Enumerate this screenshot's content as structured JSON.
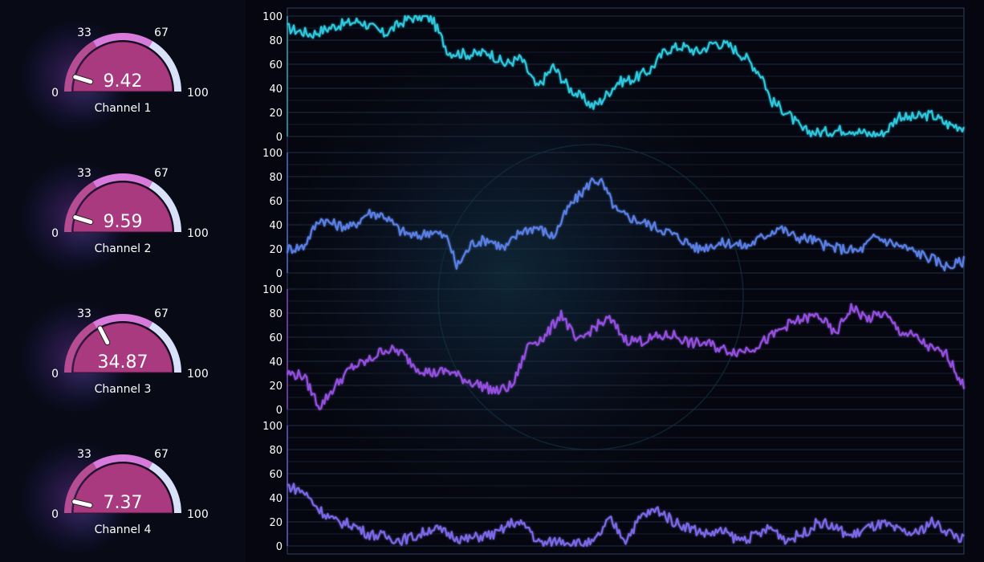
{
  "gauges": [
    {
      "label": "Channel 1",
      "value": 9.42,
      "display": "9.42"
    },
    {
      "label": "Channel 2",
      "value": 9.59,
      "display": "9.59"
    },
    {
      "label": "Channel 3",
      "value": 34.87,
      "display": "34.87"
    },
    {
      "label": "Channel 4",
      "value": 7.37,
      "display": "7.37"
    }
  ],
  "gauge_scale": {
    "min": 0,
    "max": 100,
    "ticks": [
      {
        "value": 0,
        "label": "0"
      },
      {
        "value": 33,
        "label": "33"
      },
      {
        "value": 67,
        "label": "67"
      },
      {
        "value": 100,
        "label": "100"
      }
    ],
    "band_colors": [
      "#b64d93",
      "#d879dc",
      "#d8e0fa"
    ],
    "inner_color": "#a93a80"
  },
  "chart_data": {
    "type": "line",
    "ylim": [
      0,
      100
    ],
    "yticks": [
      0,
      20,
      40,
      60,
      80,
      100
    ],
    "grid": true,
    "series": [
      {
        "color": "#2ec7dd",
        "x": [
          0,
          30,
          60,
          90,
          120,
          150,
          170,
          180,
          200,
          230,
          250,
          270,
          290,
          310,
          330,
          350,
          370,
          380,
          390,
          410,
          430,
          450,
          470,
          490,
          510,
          530,
          550,
          570,
          590,
          600,
          620,
          640,
          660,
          680,
          700,
          720,
          740,
          760,
          770,
          800,
          820,
          840
        ],
        "y": [
          90,
          85,
          92,
          96,
          85,
          98,
          100,
          97,
          70,
          68,
          70,
          60,
          65,
          40,
          58,
          40,
          30,
          25,
          30,
          45,
          48,
          55,
          72,
          75,
          70,
          78,
          75,
          65,
          50,
          30,
          20,
          5,
          3,
          5,
          6,
          2,
          2,
          18,
          15,
          18,
          10,
          8
        ]
      },
      {
        "color": "#5a7fe4",
        "x": [
          0,
          20,
          40,
          60,
          80,
          100,
          120,
          140,
          160,
          180,
          200,
          210,
          230,
          250,
          270,
          290,
          310,
          330,
          350,
          370,
          380,
          390,
          410,
          430,
          450,
          470,
          490,
          510,
          530,
          550,
          570,
          590,
          610,
          630,
          650,
          670,
          690,
          710,
          730,
          750,
          770,
          800,
          820,
          840
        ],
        "y": [
          20,
          22,
          45,
          40,
          38,
          50,
          48,
          35,
          30,
          35,
          28,
          5,
          25,
          28,
          20,
          35,
          38,
          30,
          55,
          70,
          78,
          75,
          50,
          45,
          40,
          35,
          28,
          20,
          24,
          25,
          22,
          30,
          38,
          30,
          28,
          22,
          20,
          18,
          30,
          25,
          20,
          12,
          5,
          10
        ]
      },
      {
        "color": "#9550e0",
        "x": [
          0,
          20,
          40,
          60,
          80,
          100,
          120,
          140,
          160,
          180,
          200,
          220,
          240,
          260,
          280,
          300,
          320,
          340,
          360,
          380,
          400,
          420,
          440,
          460,
          480,
          500,
          520,
          540,
          560,
          580,
          600,
          620,
          640,
          660,
          680,
          700,
          720,
          740,
          760,
          780,
          800,
          820,
          840
        ],
        "y": [
          30,
          28,
          2,
          20,
          35,
          40,
          50,
          48,
          35,
          30,
          32,
          25,
          20,
          15,
          20,
          55,
          60,
          80,
          55,
          68,
          75,
          58,
          57,
          60,
          62,
          55,
          55,
          50,
          48,
          52,
          60,
          70,
          75,
          78,
          62,
          85,
          75,
          80,
          65,
          60,
          50,
          45,
          18
        ]
      },
      {
        "color": "#7a68e6",
        "x": [
          0,
          20,
          40,
          60,
          80,
          100,
          120,
          140,
          160,
          180,
          200,
          220,
          240,
          260,
          280,
          300,
          310,
          320,
          340,
          360,
          380,
          400,
          420,
          440,
          460,
          480,
          500,
          520,
          540,
          560,
          580,
          600,
          620,
          640,
          660,
          680,
          700,
          720,
          740,
          760,
          780,
          800,
          820,
          840
        ],
        "y": [
          50,
          45,
          30,
          20,
          18,
          10,
          8,
          5,
          8,
          15,
          10,
          5,
          8,
          10,
          20,
          15,
          3,
          2,
          5,
          2,
          2,
          22,
          5,
          25,
          30,
          20,
          15,
          10,
          12,
          5,
          8,
          15,
          5,
          10,
          20,
          15,
          8,
          15,
          18,
          12,
          10,
          20,
          12,
          5
        ]
      }
    ]
  }
}
